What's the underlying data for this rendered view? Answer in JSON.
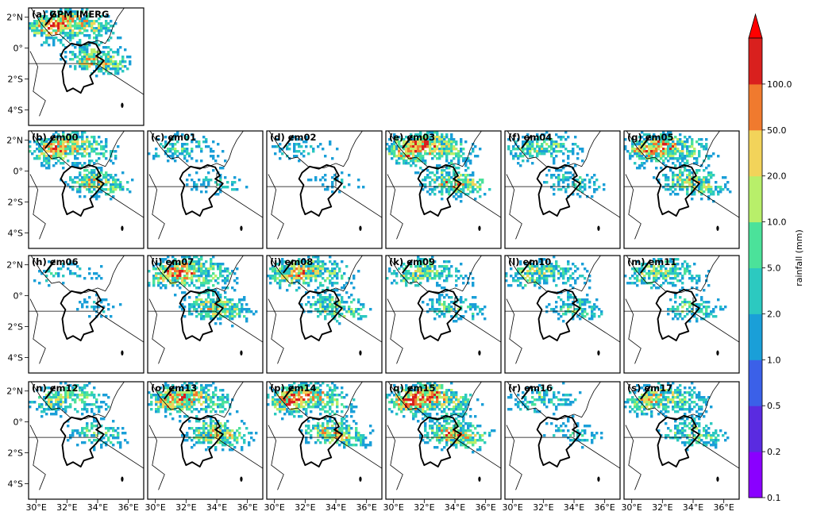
{
  "figure": {
    "lat_ticks": [
      "2°N",
      "0°",
      "2°S",
      "4°S"
    ],
    "lon_ticks": [
      "30°E",
      "32°E",
      "34°E",
      "36°E"
    ]
  },
  "colorbar": {
    "label": "rainfall (mm)",
    "levels": [
      "0.1",
      "0.2",
      "0.5",
      "1.0",
      "2.0",
      "5.0",
      "10.0",
      "20.0",
      "50.0",
      "100.0"
    ],
    "colors": [
      "#8a00ff",
      "#5a2be0",
      "#3b60e8",
      "#1a9fd8",
      "#2cc9c0",
      "#4be29a",
      "#b8ef6a",
      "#f2d35a",
      "#f07a2e",
      "#d9201e"
    ],
    "extend_color": "#ff0000"
  },
  "chart_data": {
    "type": "heatmap",
    "variable": "rainfall (mm)",
    "lon_range": [
      29.5,
      37.0
    ],
    "lat_range": [
      -5.0,
      2.6
    ],
    "panels": [
      {
        "label": "(a) GPM IMERG",
        "intensity": 0.9
      },
      {
        "label": "(b) em00",
        "intensity": 0.8
      },
      {
        "label": "(c) em01",
        "intensity": 0.45
      },
      {
        "label": "(d) em02",
        "intensity": 0.35
      },
      {
        "label": "(e) em03",
        "intensity": 0.9
      },
      {
        "label": "(f) em04",
        "intensity": 0.55
      },
      {
        "label": "(g) em05",
        "intensity": 0.85
      },
      {
        "label": "(h) em06",
        "intensity": 0.35
      },
      {
        "label": "(i) em07",
        "intensity": 0.85
      },
      {
        "label": "(j) em08",
        "intensity": 0.75
      },
      {
        "label": "(k) em09",
        "intensity": 0.6
      },
      {
        "label": "(l) em10",
        "intensity": 0.6
      },
      {
        "label": "(m) em11",
        "intensity": 0.6
      },
      {
        "label": "(n) em12",
        "intensity": 0.6
      },
      {
        "label": "(o) em13",
        "intensity": 0.85
      },
      {
        "label": "(p) em14",
        "intensity": 0.9
      },
      {
        "label": "(q) em15",
        "intensity": 0.95
      },
      {
        "label": "(r) em16",
        "intensity": 0.45
      },
      {
        "label": "(s) em17",
        "intensity": 0.7
      }
    ]
  }
}
